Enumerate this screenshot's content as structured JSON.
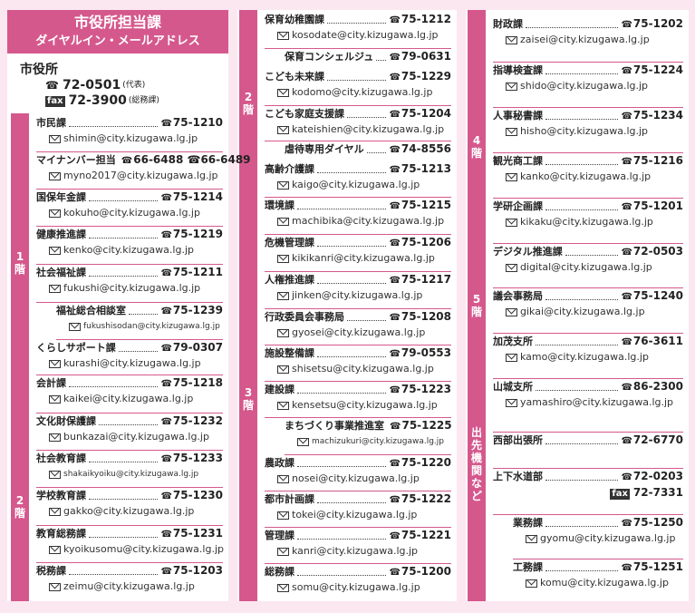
{
  "header": {
    "title": "市役所担当課",
    "subtitle": "ダイヤルイン・メールアドレス"
  },
  "main_office": {
    "name": "市役所",
    "tel": "72-0501",
    "tel_note": "(代表)",
    "fax_label": "fax",
    "fax": "72-3900",
    "fax_note": "(総務課)"
  },
  "floors": {
    "f1": "1階",
    "f2": "2階",
    "f3": "3階",
    "f4": "4階",
    "f5": "5階",
    "branches": "出先機関など"
  },
  "icons": {
    "tel": "☎",
    "mail": "mail-icon"
  },
  "col1": [
    {
      "name": "市民課",
      "phone": "75-1210",
      "email": "shimin@city.kizugawa.lg.jp"
    },
    {
      "name": "マイナンバー担当",
      "phone": "66-6488 ☎66-6489",
      "email": "myno2017@city.kizugawa.lg.jp"
    },
    {
      "name": "国保年金課",
      "phone": "75-1214",
      "email": "kokuho@city.kizugawa.lg.jp"
    },
    {
      "name": "健康推進課",
      "phone": "75-1219",
      "email": "kenko@city.kizugawa.lg.jp"
    },
    {
      "name": "社会福祉課",
      "phone": "75-1211",
      "email": "fukushi@city.kizugawa.lg.jp"
    },
    {
      "name": "福祉総合相談室",
      "phone": "75-1239",
      "email": "fukushisodan@city.kizugawa.lg.jp"
    },
    {
      "name": "くらしサポート課",
      "phone": "79-0307",
      "email": "kurashi@city.kizugawa.lg.jp"
    },
    {
      "name": "会計課",
      "phone": "75-1218",
      "email": "kaikei@city.kizugawa.lg.jp"
    },
    {
      "name": "文化財保護課",
      "phone": "75-1232",
      "email": "bunkazai@city.kizugawa.lg.jp"
    },
    {
      "name": "社会教育課",
      "phone": "75-1233",
      "email": "shakaikyoiku@city.kizugawa.lg.jp"
    },
    {
      "name": "学校教育課",
      "phone": "75-1230",
      "email": "gakko@city.kizugawa.lg.jp"
    },
    {
      "name": "教育総務課",
      "phone": "75-1231",
      "email": "kyoikusomu@city.kizugawa.lg.jp"
    },
    {
      "name": "税務課",
      "phone": "75-1203",
      "email": "zeimu@city.kizugawa.lg.jp"
    }
  ],
  "col2": [
    {
      "name": "保育幼稚園課",
      "phone": "75-1212",
      "email": "kosodate@city.kizugawa.lg.jp"
    },
    {
      "name": "保育コンシェルジュ",
      "phone": "79-0631",
      "email": ""
    },
    {
      "name": "こども未来課",
      "phone": "75-1229",
      "email": "kodomo@city.kizugawa.lg.jp"
    },
    {
      "name": "こども家庭支援課",
      "phone": "75-1204",
      "email": "kateishien@city.kizugawa.lg.jp"
    },
    {
      "name": "虐待専用ダイヤル",
      "phone": "74-8556",
      "email": ""
    },
    {
      "name": "高齢介護課",
      "phone": "75-1213",
      "email": "kaigo@city.kizugawa.lg.jp"
    },
    {
      "name": "環境課",
      "phone": "75-1215",
      "email": "machibika@city.kizugawa.lg.jp"
    },
    {
      "name": "危機管理課",
      "phone": "75-1206",
      "email": "kikikanri@city.kizugawa.lg.jp"
    },
    {
      "name": "人権推進課",
      "phone": "75-1217",
      "email": "jinken@city.kizugawa.lg.jp"
    },
    {
      "name": "行政委員会事務局",
      "phone": "75-1208",
      "email": "gyosei@city.kizugawa.lg.jp"
    },
    {
      "name": "施設整備課",
      "phone": "79-0553",
      "email": "shisetsu@city.kizugawa.lg.jp"
    },
    {
      "name": "建設課",
      "phone": "75-1223",
      "email": "kensetsu@city.kizugawa.lg.jp"
    },
    {
      "name": "まちづくり事業推進室",
      "phone": "75-1225",
      "email": "machizukuri@city.kizugawa.lg.jp"
    },
    {
      "name": "農政課",
      "phone": "75-1220",
      "email": "nosei@city.kizugawa.lg.jp"
    },
    {
      "name": "都市計画課",
      "phone": "75-1222",
      "email": "tokei@city.kizugawa.lg.jp"
    },
    {
      "name": "管理課",
      "phone": "75-1221",
      "email": "kanri@city.kizugawa.lg.jp"
    },
    {
      "name": "総務課",
      "phone": "75-1200",
      "email": "somu@city.kizugawa.lg.jp"
    }
  ],
  "col3": [
    {
      "name": "財政課",
      "phone": "75-1202",
      "email": "zaisei@city.kizugawa.lg.jp"
    },
    {
      "name": "指導検査課",
      "phone": "75-1224",
      "email": "shido@city.kizugawa.lg.jp"
    },
    {
      "name": "人事秘書課",
      "phone": "75-1234",
      "email": "hisho@city.kizugawa.lg.jp"
    },
    {
      "name": "観光商工課",
      "phone": "75-1216",
      "email": "kanko@city.kizugawa.lg.jp"
    },
    {
      "name": "学研企画課",
      "phone": "75-1201",
      "email": "kikaku@city.kizugawa.lg.jp"
    },
    {
      "name": "デジタル推進課",
      "phone": "72-0503",
      "email": "digital@city.kizugawa.lg.jp"
    },
    {
      "name": "議会事務局",
      "phone": "75-1240",
      "email": "gikai@city.kizugawa.lg.jp"
    },
    {
      "name": "加茂支所",
      "phone": "76-3611",
      "email": "kamo@city.kizugawa.lg.jp"
    },
    {
      "name": "山城支所",
      "phone": "86-2300",
      "email": "yamashiro@city.kizugawa.lg.jp"
    },
    {
      "name": "西部出張所",
      "phone": "72-6770",
      "email": ""
    },
    {
      "name": "上下水道部",
      "phone": "72-0203",
      "fax_label": "fax",
      "fax": "72-7331",
      "email": ""
    },
    {
      "name": "業務課",
      "phone": "75-1250",
      "email": "gyomu@city.kizugawa.lg.jp"
    },
    {
      "name": "工務課",
      "phone": "75-1251",
      "email": "komu@city.kizugawa.lg.jp"
    }
  ]
}
